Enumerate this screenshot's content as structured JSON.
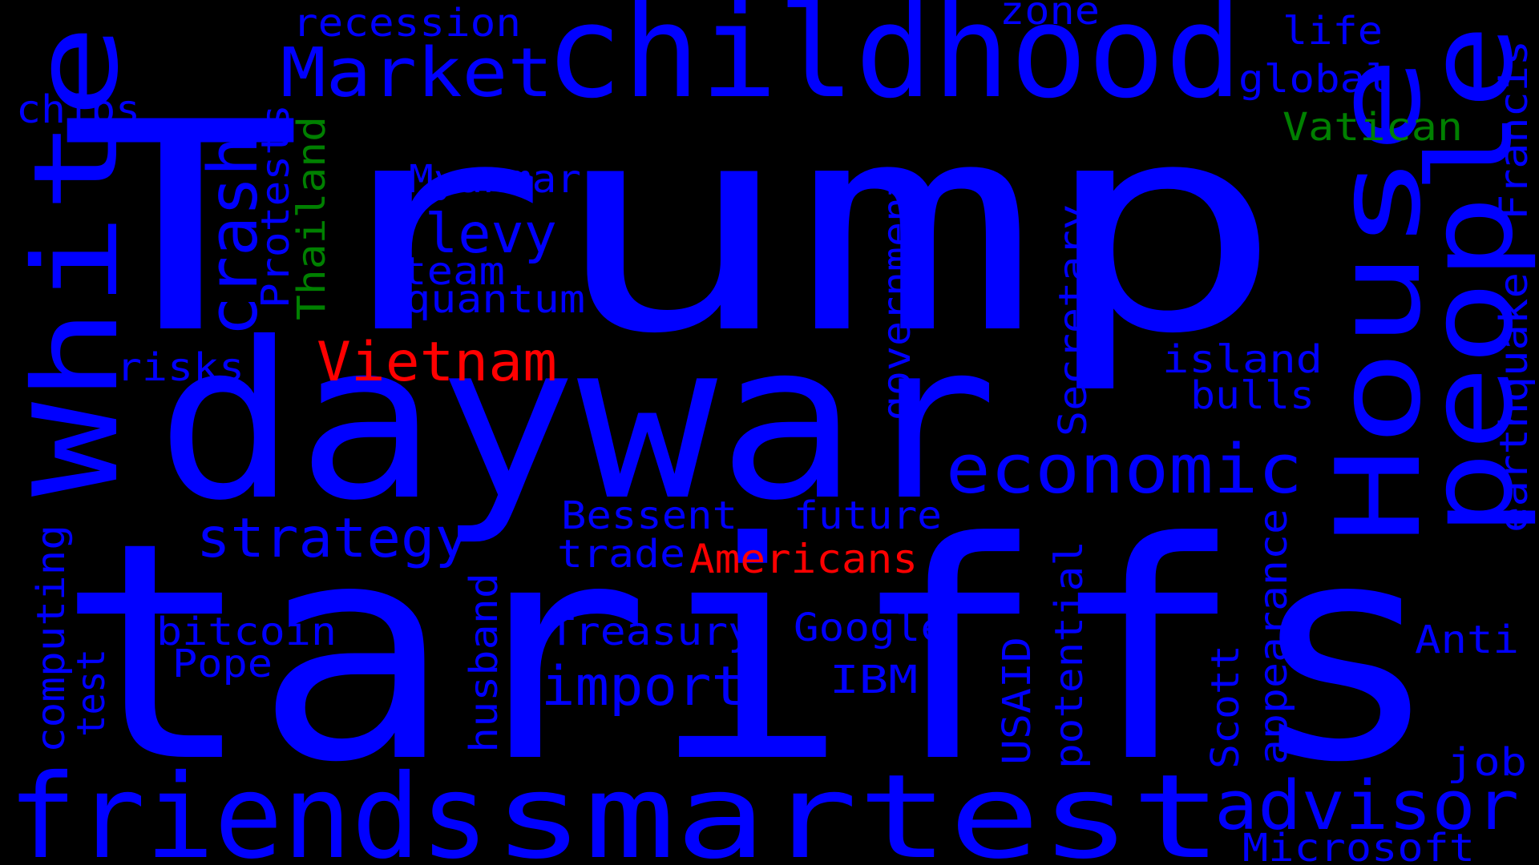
{
  "colors": {
    "background": "#000000",
    "blue": "#0000ff",
    "green": "#008000",
    "red": "#ff0000"
  },
  "words": [
    {
      "text": "Trump",
      "color": "blue"
    },
    {
      "text": "tariffs",
      "color": "blue"
    },
    {
      "text": "daywar",
      "color": "blue"
    },
    {
      "text": "childhood",
      "color": "blue"
    },
    {
      "text": "smartest",
      "color": "blue"
    },
    {
      "text": "friends",
      "color": "blue"
    },
    {
      "text": "people",
      "color": "blue"
    },
    {
      "text": "House",
      "color": "blue"
    },
    {
      "text": "White",
      "color": "blue"
    },
    {
      "text": "Market",
      "color": "blue"
    },
    {
      "text": "economic",
      "color": "blue"
    },
    {
      "text": "advisor",
      "color": "blue"
    },
    {
      "text": "crash",
      "color": "blue"
    },
    {
      "text": "strategy",
      "color": "blue"
    },
    {
      "text": "import",
      "color": "blue"
    },
    {
      "text": "Vietnam",
      "color": "red"
    },
    {
      "text": "Americans",
      "color": "red"
    },
    {
      "text": "levy",
      "color": "blue"
    },
    {
      "text": "recession",
      "color": "blue"
    },
    {
      "text": "zone",
      "color": "blue"
    },
    {
      "text": "life",
      "color": "blue"
    },
    {
      "text": "global",
      "color": "blue"
    },
    {
      "text": "Vatican",
      "color": "green"
    },
    {
      "text": "chips",
      "color": "blue"
    },
    {
      "text": "Myanmar",
      "color": "blue"
    },
    {
      "text": "team",
      "color": "blue"
    },
    {
      "text": "quantum",
      "color": "blue"
    },
    {
      "text": "risks",
      "color": "blue"
    },
    {
      "text": "Protests",
      "color": "blue"
    },
    {
      "text": "Thailand",
      "color": "green"
    },
    {
      "text": "government",
      "color": "blue"
    },
    {
      "text": "Secretary",
      "color": "blue"
    },
    {
      "text": "island",
      "color": "blue"
    },
    {
      "text": "bulls",
      "color": "blue"
    },
    {
      "text": "Francis",
      "color": "blue"
    },
    {
      "text": "earthquake",
      "color": "blue"
    },
    {
      "text": "Bessent",
      "color": "blue"
    },
    {
      "text": "future",
      "color": "blue"
    },
    {
      "text": "trade",
      "color": "blue"
    },
    {
      "text": "computing",
      "color": "blue"
    },
    {
      "text": "bitcoin",
      "color": "blue"
    },
    {
      "text": "Pope",
      "color": "blue"
    },
    {
      "text": "test",
      "color": "blue"
    },
    {
      "text": "Treasury",
      "color": "blue"
    },
    {
      "text": "Google",
      "color": "blue"
    },
    {
      "text": "IBM",
      "color": "blue"
    },
    {
      "text": "husband",
      "color": "blue"
    },
    {
      "text": "USAID",
      "color": "blue"
    },
    {
      "text": "potential",
      "color": "blue"
    },
    {
      "text": "Scott",
      "color": "blue"
    },
    {
      "text": "appearance",
      "color": "blue"
    },
    {
      "text": "Anti",
      "color": "blue"
    },
    {
      "text": "job",
      "color": "blue"
    },
    {
      "text": "Microsoft",
      "color": "blue"
    }
  ]
}
